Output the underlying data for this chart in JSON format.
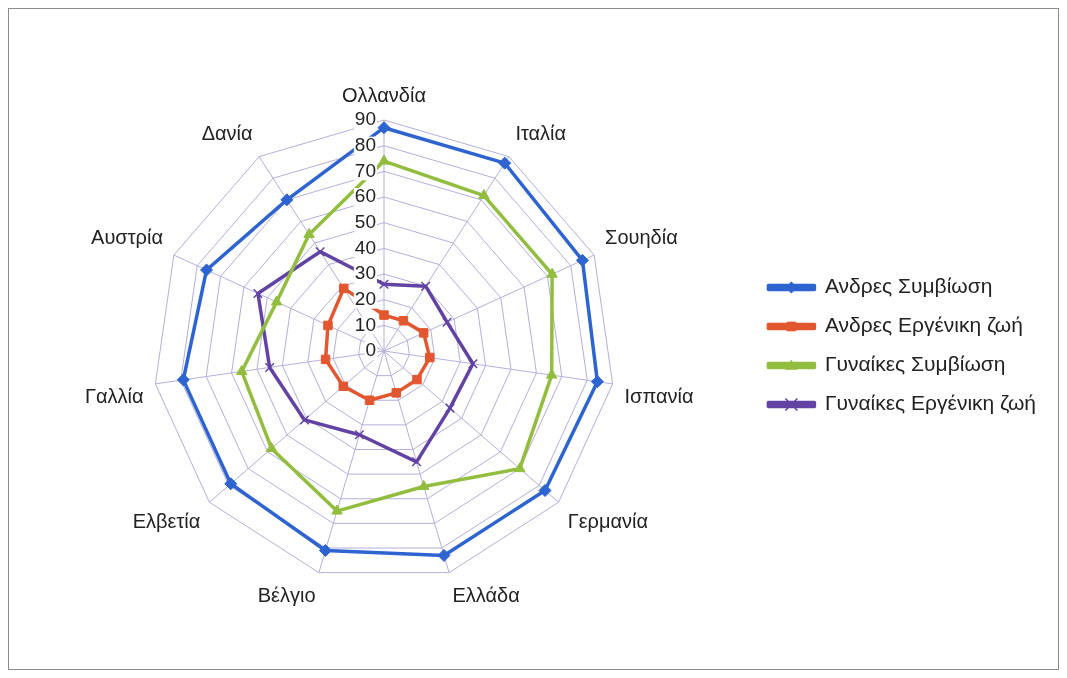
{
  "chart_data": {
    "type": "radar",
    "categories": [
      "Ολλανδία",
      "Ιταλία",
      "Σουηδία",
      "Ισπανία",
      "Γερμανία",
      "Ελλάδα",
      "Βέλγιο",
      "Ελβετία",
      "Γαλλία",
      "Αυστρία",
      "Δανία"
    ],
    "series": [
      {
        "name": "Ανδρες Συμβίωση",
        "color": "#2e64d0",
        "marker": "diamond",
        "values": [
          87,
          87,
          85,
          84,
          83,
          83,
          81,
          79,
          79,
          76,
          70
        ]
      },
      {
        "name": "Ανδρες Εργένικη ζωή",
        "color": "#e2572f",
        "marker": "square",
        "values": [
          14,
          14,
          17,
          18,
          17,
          17,
          20,
          21,
          23,
          24,
          29
        ]
      },
      {
        "name": "Γυναίκες Συμβίωση",
        "color": "#92bd3e",
        "marker": "triangle",
        "values": [
          74,
          72,
          72,
          66,
          70,
          55,
          65,
          58,
          56,
          46,
          54
        ]
      },
      {
        "name": "Γυναίκες Εργένικη ζωή",
        "color": "#6243a3",
        "marker": "cross",
        "values": [
          26,
          30,
          27,
          35,
          34,
          45,
          34,
          41,
          45,
          54,
          46
        ]
      }
    ],
    "ylim": [
      0,
      90
    ],
    "yticks": [
      0,
      10,
      20,
      30,
      40,
      50,
      60,
      70,
      80,
      90
    ],
    "grid": true,
    "legend": "right"
  }
}
